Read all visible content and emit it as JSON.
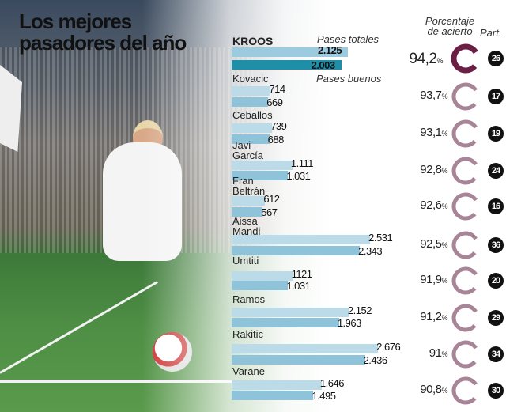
{
  "title": "Los mejores pasadores del año",
  "chart_data": {
    "type": "bar",
    "title": "Los mejores pasadores del año",
    "legend": {
      "total": "Pases totales",
      "good": "Pases buenos"
    },
    "col_pct": "Porcentaje de acierto",
    "col_matches": "Part.",
    "colors": {
      "highlight_total": "#9ccbe0",
      "highlight_good": "#1f8fa8",
      "total": "#bcdbe8",
      "good": "#8ec3da",
      "ring_highlight": "#6b1f45",
      "ring": "#a88596"
    },
    "players": [
      {
        "name": "KROOS",
        "total": 2125,
        "good": 2003,
        "total_label": "2.125",
        "good_label": "2.003",
        "pct": "94,2",
        "matches": "26"
      },
      {
        "name": "Kovacic",
        "total": 714,
        "good": 669,
        "total_label": "714",
        "good_label": "669",
        "pct": "93,7",
        "matches": "17"
      },
      {
        "name": "Ceballos",
        "total": 739,
        "good": 688,
        "total_label": "739",
        "good_label": "688",
        "pct": "93,1",
        "matches": "19"
      },
      {
        "name": "Javi García",
        "total": 1111,
        "good": 1031,
        "total_label": "1.111",
        "good_label": "1.031",
        "pct": "92,8",
        "matches": "24"
      },
      {
        "name": "Fran Beltrán",
        "total": 612,
        "good": 567,
        "total_label": "612",
        "good_label": "567",
        "pct": "92,6",
        "matches": "16"
      },
      {
        "name": "Aissa Mandi",
        "total": 2531,
        "good": 2343,
        "total_label": "2.531",
        "good_label": "2.343",
        "pct": "92,5",
        "matches": "36"
      },
      {
        "name": "Umtiti",
        "total": 1121,
        "good": 1031,
        "total_label": "1121",
        "good_label": "1.031",
        "pct": "91,9",
        "matches": "20"
      },
      {
        "name": "Ramos",
        "total": 2152,
        "good": 1963,
        "total_label": "2.152",
        "good_label": "1.963",
        "pct": "91,2",
        "matches": "29"
      },
      {
        "name": "Rakitic",
        "total": 2676,
        "good": 2436,
        "total_label": "2.676",
        "good_label": "2.436",
        "pct": "91",
        "matches": "34"
      },
      {
        "name": "Varane",
        "total": 1646,
        "good": 1495,
        "total_label": "1.646",
        "good_label": "1.495",
        "pct": "90,8",
        "matches": "30"
      }
    ]
  }
}
